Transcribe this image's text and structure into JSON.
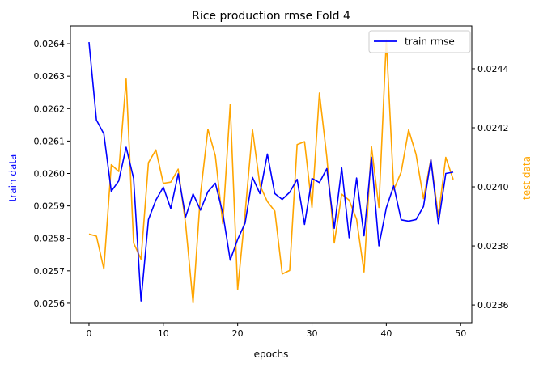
{
  "chart_data": {
    "type": "line",
    "title": "Rice production rmse Fold 4",
    "xlabel": "epochs",
    "ylabel_left": "train data",
    "ylabel_right": "test data",
    "xlim": [
      -2.5,
      51.5
    ],
    "ylim_left": [
      0.02554,
      0.026455
    ],
    "ylim_right": [
      0.02354,
      0.024545
    ],
    "x_ticks": [
      0,
      10,
      20,
      30,
      40,
      50
    ],
    "y_left_ticks": [
      0.0256,
      0.0257,
      0.0258,
      0.0259,
      0.026,
      0.0261,
      0.0262,
      0.0263,
      0.0264
    ],
    "y_right_ticks": [
      0.0236,
      0.0238,
      0.024,
      0.0242,
      0.0244
    ],
    "legend": {
      "position": "top-right",
      "entries": [
        "train rmse"
      ]
    },
    "colors": {
      "train": "#0000ff",
      "test": "#ffa500",
      "left_label": "#0000ff",
      "right_label": "#ffa500"
    },
    "x": [
      0,
      1,
      2,
      3,
      4,
      5,
      6,
      7,
      8,
      9,
      10,
      11,
      12,
      13,
      14,
      15,
      16,
      17,
      18,
      19,
      20,
      21,
      22,
      23,
      24,
      25,
      26,
      27,
      28,
      29,
      30,
      31,
      32,
      33,
      34,
      35,
      36,
      37,
      38,
      39,
      40,
      41,
      42,
      43,
      44,
      45,
      46,
      47,
      48,
      49
    ],
    "series": [
      {
        "name": "train rmse",
        "axis": "left",
        "values": [
          0.026405,
          0.026165,
          0.026122,
          0.025945,
          0.025977,
          0.026081,
          0.025985,
          0.025607,
          0.025858,
          0.025918,
          0.025958,
          0.025892,
          0.025999,
          0.025866,
          0.025937,
          0.025887,
          0.025944,
          0.02597,
          0.025878,
          0.025733,
          0.025797,
          0.025847,
          0.025988,
          0.025938,
          0.02606,
          0.025938,
          0.02592,
          0.025942,
          0.025982,
          0.025843,
          0.025985,
          0.025972,
          0.026015,
          0.025831,
          0.026017,
          0.025802,
          0.025986,
          0.025808,
          0.02605,
          0.025777,
          0.025894,
          0.025962,
          0.025857,
          0.025853,
          0.025858,
          0.025898,
          0.026042,
          0.025845,
          0.026,
          0.026004
        ]
      },
      {
        "axis": "right",
        "values": [
          0.02384,
          0.023833,
          0.023722,
          0.024075,
          0.024052,
          0.024365,
          0.02381,
          0.023755,
          0.024082,
          0.024125,
          0.024012,
          0.024016,
          0.02406,
          0.023875,
          0.023607,
          0.023975,
          0.024195,
          0.024105,
          0.023875,
          0.024279,
          0.023652,
          0.02391,
          0.024193,
          0.024005,
          0.02395,
          0.023918,
          0.023705,
          0.023717,
          0.024143,
          0.024153,
          0.02393,
          0.024318,
          0.0241,
          0.02381,
          0.023975,
          0.023955,
          0.02389,
          0.023712,
          0.024137,
          0.02393,
          0.024497,
          0.02399,
          0.02405,
          0.024193,
          0.02411,
          0.02396,
          0.024093,
          0.0239,
          0.0241,
          0.024025
        ]
      }
    ]
  }
}
